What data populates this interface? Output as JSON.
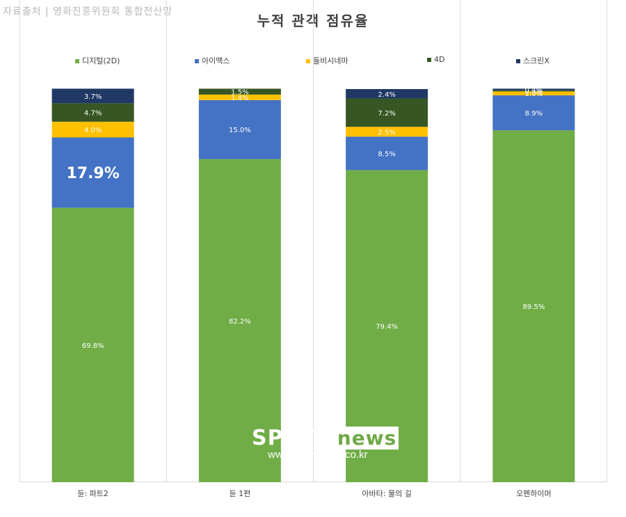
{
  "source_note": "자료출처 | 영화진흥위원회 통합전산망",
  "watermark": {
    "logo": "SPOTV",
    "logo_news": "news",
    "url": "www.spotvnews.co.kr"
  },
  "colors": {
    "디지털(2D)": "#70ad47",
    "아이맥스": "#4472c4",
    "돌비시네마": "#ffc000",
    "4D": "#375623",
    "스크린X": "#1f3864"
  },
  "chart_data": {
    "type": "bar",
    "stacked": true,
    "percent_stacked": true,
    "title": "누적 관객 점유율",
    "categories": [
      "듄: 파트2",
      "듄 1편",
      "아바타: 물의 길",
      "오펜하이머"
    ],
    "series": [
      {
        "name": "디지털(2D)",
        "values": [
          69.8,
          82.2,
          79.4,
          89.5
        ],
        "labels": [
          "69.8%",
          "82.2%",
          "79.4%",
          "89.5%"
        ]
      },
      {
        "name": "아이맥스",
        "values": [
          17.9,
          15.0,
          8.5,
          8.9
        ],
        "labels": [
          "17.9%",
          "15.0%",
          "8.5%",
          "8.9%"
        ]
      },
      {
        "name": "돌비시네마",
        "values": [
          4.0,
          1.4,
          2.5,
          1.0
        ],
        "labels": [
          "4.0%",
          "1.4%",
          "2.5%",
          "1.0%"
        ]
      },
      {
        "name": "4D",
        "values": [
          4.7,
          1.5,
          7.2,
          0.3
        ],
        "labels": [
          "4.7%",
          "1.5%",
          "7.2%",
          "0.3%"
        ]
      },
      {
        "name": "스크린X",
        "values": [
          3.7,
          0.0,
          2.4,
          0.4
        ],
        "labels": [
          "3.7%",
          "",
          "2.4%",
          "0.4%"
        ]
      }
    ],
    "ylim": [
      0,
      100
    ],
    "grid": false,
    "legend_position": "top"
  }
}
